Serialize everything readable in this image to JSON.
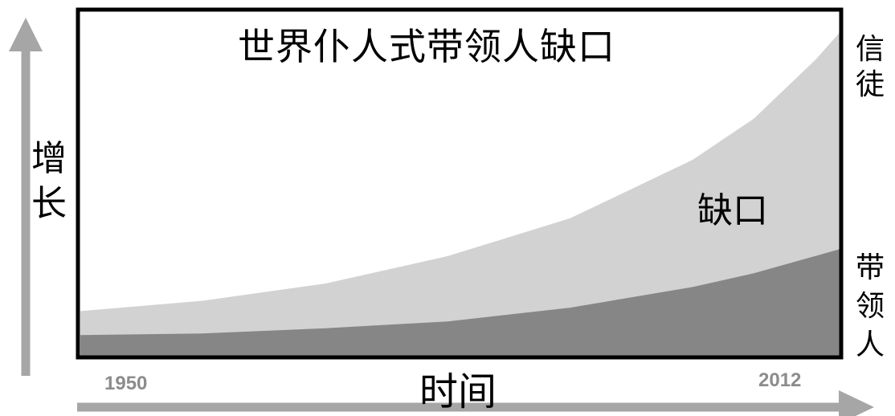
{
  "chart_data": {
    "type": "area",
    "title": "世界仆人式带领人缺口",
    "xlabel": "时间",
    "ylabel": "增长",
    "x_ticks": [
      "1950",
      "2012"
    ],
    "xlim": [
      1950,
      2012
    ],
    "ylim": [
      0,
      1
    ],
    "grid": false,
    "legend": "right",
    "annotation": "缺口",
    "series": [
      {
        "name": "信徒",
        "color": "#d2d2d2",
        "x": [
          1950,
          1960,
          1970,
          1980,
          1990,
          2000,
          2005,
          2010,
          2012
        ],
        "values": [
          0.13,
          0.16,
          0.21,
          0.29,
          0.4,
          0.57,
          0.69,
          0.86,
          0.94
        ]
      },
      {
        "name": "带领人",
        "color": "#868686",
        "x": [
          1950,
          1960,
          1970,
          1980,
          1990,
          2000,
          2005,
          2010,
          2012
        ],
        "values": [
          0.06,
          0.065,
          0.08,
          0.1,
          0.14,
          0.2,
          0.24,
          0.29,
          0.31
        ]
      }
    ]
  }
}
